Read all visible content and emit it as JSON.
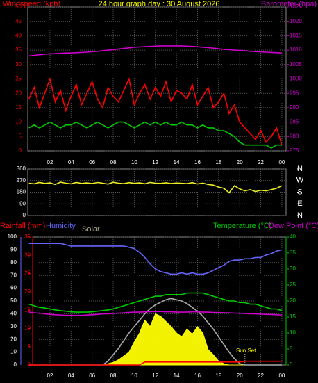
{
  "chart_data": [
    {
      "type": "line",
      "title": "24 hour graph day : 30 August 2026",
      "y_label": "Windspeed (kph)",
      "y2_label": "Barometer (hpa)",
      "x": [
        0,
        0.5,
        1,
        1.5,
        2,
        2.5,
        3,
        3.5,
        4,
        4.5,
        5,
        5.5,
        6,
        6.5,
        7,
        7.5,
        8,
        8.5,
        9,
        9.5,
        10,
        10.5,
        11,
        11.5,
        12,
        12.5,
        13,
        13.5,
        14,
        14.5,
        15,
        15.5,
        16,
        16.5,
        17,
        17.5,
        18,
        18.5,
        19,
        19.5,
        20,
        20.5,
        21,
        21.5,
        22,
        22.5,
        23,
        23.5,
        24
      ],
      "xlim": [
        0,
        24.4
      ],
      "xticks": [
        {
          "value": 2,
          "label": "02"
        },
        {
          "value": 4,
          "label": "04"
        },
        {
          "value": 6,
          "label": "06"
        },
        {
          "value": 8,
          "label": "08"
        },
        10,
        12,
        14,
        16,
        18,
        20,
        22,
        {
          "value": 24,
          "label": "00"
        }
      ],
      "ylim": [
        0,
        50
      ],
      "yticks": [
        0,
        5,
        10,
        15,
        20,
        25,
        30,
        35,
        40,
        45,
        50
      ],
      "y2lim": [
        975,
        1025
      ],
      "y2ticks": [
        975,
        980,
        985,
        990,
        995,
        1000,
        1005,
        1010,
        1015,
        1020,
        1025
      ],
      "grid": true,
      "series": [
        {
          "color": "#ff0000",
          "values": [
            18,
            22,
            15,
            20,
            25,
            17,
            21,
            14,
            19,
            23,
            16,
            20,
            24,
            18,
            15,
            22,
            19,
            17,
            21,
            25,
            16,
            20,
            23,
            18,
            22,
            19,
            24,
            17,
            21,
            20,
            18,
            23,
            16,
            19,
            22,
            15,
            17,
            20,
            13,
            16,
            10,
            8,
            6,
            4,
            7,
            3,
            5,
            8,
            2
          ]
        },
        {
          "color": "#00cc00",
          "values": [
            8,
            9,
            8,
            9,
            10,
            9,
            8,
            9,
            9,
            10,
            9,
            8,
            9,
            10,
            9,
            8,
            9,
            10,
            10,
            9,
            8,
            9,
            10,
            9,
            10,
            9,
            10,
            9,
            9,
            10,
            9,
            9,
            8,
            9,
            8,
            8,
            7,
            7,
            6,
            5,
            3,
            2,
            2,
            2,
            2,
            2,
            1,
            2,
            2
          ]
        },
        {
          "color": "#cc00cc",
          "axis": "y2",
          "values": [
            1008,
            1008.2,
            1008.4,
            1008.6,
            1008.7,
            1008.8,
            1008.9,
            1009,
            1009,
            1009.1,
            1009.2,
            1009.3,
            1009.5,
            1009.6,
            1009.8,
            1010,
            1010.2,
            1010.4,
            1010.6,
            1010.8,
            1011,
            1011.1,
            1011.2,
            1011.3,
            1011.4,
            1011.5,
            1011.5,
            1011.5,
            1011.5,
            1011.5,
            1011.4,
            1011.3,
            1011.2,
            1011,
            1010.9,
            1010.7,
            1010.5,
            1010.3,
            1010.2,
            1010,
            1009.9,
            1009.8,
            1009.6,
            1009.5,
            1009.4,
            1009.3,
            1009.2,
            1009.1,
            1009
          ]
        }
      ]
    },
    {
      "type": "line",
      "x": [
        0,
        0.5,
        1,
        1.5,
        2,
        2.5,
        3,
        3.5,
        4,
        4.5,
        5,
        5.5,
        6,
        6.5,
        7,
        7.5,
        8,
        8.5,
        9,
        9.5,
        10,
        10.5,
        11,
        11.5,
        12,
        12.5,
        13,
        13.5,
        14,
        14.5,
        15,
        15.5,
        16,
        16.5,
        17,
        17.5,
        18,
        18.5,
        19,
        19.5,
        20,
        20.5,
        21,
        21.5,
        22,
        22.5,
        23,
        23.5,
        24
      ],
      "xlim": [
        0,
        24.4
      ],
      "xticks": [
        2,
        4,
        6,
        8,
        10,
        12,
        14,
        16,
        18,
        20,
        22,
        24
      ],
      "ylim": [
        0,
        360
      ],
      "yticks": [
        0,
        90,
        180,
        270,
        360
      ],
      "y2lim": [
        0,
        360
      ],
      "y2ticks": [
        {
          "value": 0,
          "label": "N"
        },
        {
          "value": 90,
          "label": "E"
        },
        {
          "value": 180,
          "label": "S"
        },
        {
          "value": 270,
          "label": "W"
        },
        {
          "value": 360,
          "label": "N"
        }
      ],
      "grid": true,
      "series": [
        {
          "color": "#eeee22",
          "values": [
            250,
            245,
            255,
            248,
            252,
            240,
            258,
            250,
            245,
            255,
            248,
            252,
            247,
            255,
            250,
            243,
            257,
            250,
            246,
            254,
            249,
            252,
            245,
            256,
            250,
            248,
            253,
            247,
            251,
            249,
            246,
            254,
            244,
            250,
            240,
            235,
            220,
            210,
            175,
            230,
            205,
            190,
            200,
            185,
            195,
            190,
            200,
            210,
            230
          ]
        }
      ]
    },
    {
      "type": "line",
      "x": [
        0,
        0.5,
        1,
        1.5,
        2,
        2.5,
        3,
        3.5,
        4,
        4.5,
        5,
        5.5,
        6,
        6.5,
        7,
        7.5,
        8,
        8.5,
        9,
        9.5,
        10,
        10.5,
        11,
        11.5,
        12,
        12.5,
        13,
        13.5,
        14,
        14.5,
        15,
        15.5,
        16,
        16.5,
        17,
        17.5,
        18,
        18.5,
        19,
        19.5,
        20,
        20.5,
        21,
        21.5,
        22,
        22.5,
        23,
        23.5,
        24
      ],
      "xlim": [
        0,
        24.4
      ],
      "xticks": [
        {
          "value": 2,
          "label": "02"
        },
        {
          "value": 4,
          "label": "04"
        },
        {
          "value": 6,
          "label": "06"
        },
        {
          "value": 8,
          "label": "08"
        },
        10,
        12,
        14,
        16,
        18,
        20,
        22,
        {
          "value": 24,
          "label": "00"
        }
      ],
      "ylim": [
        0,
        100
      ],
      "yticks": [
        0,
        10,
        20,
        30,
        40,
        50,
        60,
        70,
        80,
        90,
        100
      ],
      "y2lim": [
        0,
        40
      ],
      "y2ticks": [
        0,
        5,
        10,
        15,
        20,
        25,
        30,
        35,
        40
      ],
      "y3lim": [
        0,
        35
      ],
      "y3ticks": [
        0,
        5,
        10,
        15,
        20,
        25,
        30,
        35
      ],
      "grid": true,
      "annotation": "Sun Set",
      "vertical_lines": [
        7.5,
        20.5
      ],
      "series": [
        {
          "name": "Solar",
          "color": "#ffff00",
          "fill": true,
          "values": [
            0,
            0,
            0,
            0,
            0,
            0,
            0,
            0,
            0,
            0,
            0,
            0,
            0,
            0,
            0,
            1,
            2,
            4,
            7,
            10,
            18,
            25,
            35,
            30,
            40,
            38,
            34,
            30,
            25,
            22,
            28,
            24,
            30,
            25,
            12,
            8,
            3,
            1,
            0,
            0,
            0,
            0,
            0,
            0,
            0,
            0,
            0,
            0,
            0
          ]
        },
        {
          "color": "#aaaaaa",
          "values": [
            0,
            0,
            0,
            0,
            0,
            0,
            0,
            0,
            0,
            0,
            0,
            0,
            0,
            0,
            0,
            3,
            8,
            13,
            19,
            25,
            30,
            35,
            40,
            44,
            47,
            49,
            51,
            52,
            51,
            50,
            48,
            45,
            42,
            38,
            33,
            28,
            22,
            16,
            10,
            5,
            1,
            0,
            0,
            0,
            0,
            0,
            0,
            0,
            0
          ]
        },
        {
          "name": "Humidity",
          "color": "#6666ff",
          "values": [
            95,
            95,
            95,
            95,
            95,
            95,
            95,
            94,
            93,
            93,
            93,
            93,
            93,
            93,
            93,
            93,
            93,
            93,
            93,
            92,
            91,
            88,
            84,
            79,
            75,
            73,
            72,
            71,
            71,
            72,
            71,
            72,
            71,
            71,
            72,
            74,
            76,
            78,
            81,
            82,
            82,
            83,
            83,
            84,
            84,
            86,
            87,
            89,
            90
          ]
        },
        {
          "name": "Temperature (°C)",
          "color": "#00cc00",
          "axis": "y2",
          "values": [
            19,
            18.5,
            18,
            17.8,
            17.5,
            17.2,
            17,
            16.8,
            16.6,
            16.5,
            16.5,
            16.5,
            16.6,
            16.8,
            17,
            17.2,
            17.5,
            18,
            18.5,
            19,
            19.5,
            20,
            20.5,
            21,
            21.5,
            21.5,
            22,
            22,
            22,
            22,
            22.5,
            22.5,
            22.5,
            22.5,
            22,
            21.5,
            21,
            20.5,
            20,
            20,
            19.5,
            19.5,
            19,
            19,
            18.5,
            18,
            17.5,
            17.5,
            17
          ]
        },
        {
          "name": "Dew Point (°C)",
          "color": "#cc00cc",
          "axis": "y2",
          "values": [
            16.5,
            16.3,
            16.2,
            16,
            15.8,
            15.7,
            15.6,
            15.5,
            15.5,
            15.5,
            15.5,
            15.6,
            15.7,
            15.8,
            16,
            16,
            16.1,
            16.2,
            16.3,
            16.4,
            16.5,
            16.5,
            16.6,
            16.6,
            16.7,
            16.7,
            16.6,
            16.6,
            16.5,
            16.5,
            16.5,
            16.6,
            16.6,
            16.5,
            16.5,
            16.4,
            16.4,
            16.3,
            16.3,
            16.2,
            16.2,
            16.1,
            16,
            16,
            15.9,
            15.8,
            15.8,
            15.7,
            15.6
          ]
        },
        {
          "name": "Rainfall (mm)",
          "color": "#ff0000",
          "axis": "y3",
          "values": [
            0,
            0,
            0,
            0,
            0,
            0,
            0,
            0,
            0,
            0,
            0,
            0,
            0,
            0,
            0,
            0,
            0,
            0,
            0,
            0,
            0,
            0,
            0.8,
            0.8,
            0.8,
            0.8,
            0.8,
            0.8,
            0.8,
            0.8,
            0.8,
            0.8,
            0.8,
            0.8,
            0.8,
            0.8,
            0.8,
            0.8,
            0.8,
            0.8,
            0.8,
            1,
            1,
            1,
            1,
            1,
            1,
            1,
            1
          ]
        }
      ]
    }
  ]
}
